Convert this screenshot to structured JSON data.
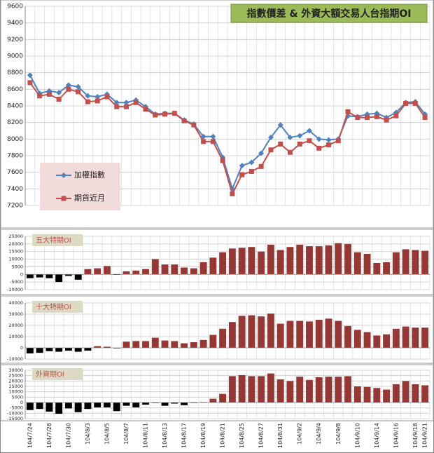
{
  "chart_data": [
    {
      "type": "line",
      "title": "指數價差 & 外資大額交易人台指期OI",
      "ylim": [
        7200,
        9600
      ],
      "yticks": [
        7200,
        7400,
        7600,
        7800,
        8000,
        8200,
        8400,
        8600,
        8800,
        9000,
        9200,
        9400,
        9600
      ],
      "grid": true,
      "legend": "lower-left",
      "series": [
        {
          "name": "加權指數",
          "color": "#4f81bd",
          "marker": "diamond",
          "values": [
            8770,
            8550,
            8580,
            8560,
            8650,
            8630,
            8520,
            8510,
            8540,
            8440,
            8440,
            8470,
            8390,
            8300,
            8310,
            8310,
            8230,
            8180,
            8030,
            8030,
            7780,
            7400,
            7680,
            7720,
            7830,
            8020,
            8170,
            8020,
            8040,
            8100,
            8000,
            7990,
            8000,
            8280,
            8270,
            8300,
            8310,
            8260,
            8320,
            8440,
            8450,
            8300
          ]
        },
        {
          "name": "期貨近月",
          "color": "#c0504d",
          "marker": "square",
          "values": [
            8680,
            8520,
            8540,
            8480,
            8600,
            8570,
            8450,
            8460,
            8510,
            8390,
            8390,
            8440,
            8360,
            8290,
            8300,
            8310,
            8220,
            8170,
            7970,
            7970,
            7740,
            7340,
            7570,
            7610,
            7670,
            7870,
            7940,
            7840,
            7940,
            7980,
            7890,
            7930,
            7980,
            8330,
            8260,
            8260,
            8270,
            8230,
            8280,
            8430,
            8430,
            8260
          ]
        }
      ]
    },
    {
      "type": "bar",
      "title": "五大特期OI",
      "color": "#953735",
      "negative_color": "#000000",
      "grid": true,
      "ylim": [
        -10000,
        25000
      ],
      "yticks": [
        -10000,
        -5000,
        0,
        5000,
        10000,
        15000,
        20000,
        25000
      ],
      "values": [
        -2500,
        -2000,
        -2500,
        -5000,
        -1000,
        -3500,
        3500,
        4000,
        5500,
        -300,
        2000,
        2500,
        3500,
        10000,
        6500,
        6500,
        4500,
        4000,
        8000,
        11000,
        14500,
        17000,
        17500,
        18000,
        15000,
        19500,
        16000,
        18000,
        19500,
        18500,
        18500,
        19000,
        20500,
        20000,
        14500,
        13500,
        7500,
        8000,
        14500,
        16500,
        16000,
        15500
      ]
    },
    {
      "type": "bar",
      "title": "十大特期OI",
      "color": "#953735",
      "negative_color": "#000000",
      "grid": true,
      "ylim": [
        -10000,
        40000
      ],
      "yticks": [
        -10000,
        0,
        10000,
        20000,
        30000,
        40000
      ],
      "values": [
        -5000,
        -4500,
        -3000,
        -3500,
        -2500,
        -3500,
        -2500,
        1500,
        1000,
        -500,
        5500,
        6000,
        6000,
        9000,
        6500,
        6000,
        4000,
        5000,
        7000,
        11500,
        17000,
        23000,
        28500,
        29000,
        28000,
        30500,
        21500,
        24000,
        24000,
        23500,
        25000,
        26000,
        24000,
        19500,
        16000,
        14000,
        11000,
        12000,
        17000,
        19000,
        18000,
        18000
      ]
    },
    {
      "type": "bar",
      "title": "外資期OI",
      "color": "#953735",
      "negative_color": "#000000",
      "grid": true,
      "ylim": [
        -15000,
        30000
      ],
      "yticks": [
        -15000,
        -10000,
        -5000,
        0,
        5000,
        10000,
        15000,
        20000,
        25000,
        30000
      ],
      "categories": [
        "104/7/24",
        null,
        "104/7/28",
        null,
        "104/7/30",
        null,
        "104/8/3",
        null,
        "104/8/5",
        null,
        "104/8/7",
        null,
        "104/8/11",
        null,
        "104/8/13",
        null,
        "104/8/17",
        null,
        "104/8/19",
        null,
        "104/8/21",
        null,
        "104/8/25",
        null,
        "104/8/27",
        null,
        "104/8/31",
        null,
        "104/9/2",
        null,
        "104/9/4",
        null,
        "104/9/8",
        null,
        "104/9/10",
        null,
        "104/9/14",
        null,
        "104/9/16",
        null,
        "104/9/18",
        "104/9/21"
      ],
      "values": [
        -7000,
        -6000,
        -8500,
        -10500,
        -5500,
        -9000,
        -6000,
        -4500,
        -4500,
        -8000,
        -3000,
        -4500,
        -2000,
        -500,
        -3000,
        -1000,
        -2500,
        -500,
        500,
        3500,
        8000,
        24500,
        25500,
        24500,
        24500,
        27000,
        21500,
        20000,
        24000,
        21000,
        23500,
        24000,
        24000,
        24500,
        15000,
        14500,
        13500,
        12000,
        17000,
        20000,
        17000,
        16000
      ]
    }
  ]
}
